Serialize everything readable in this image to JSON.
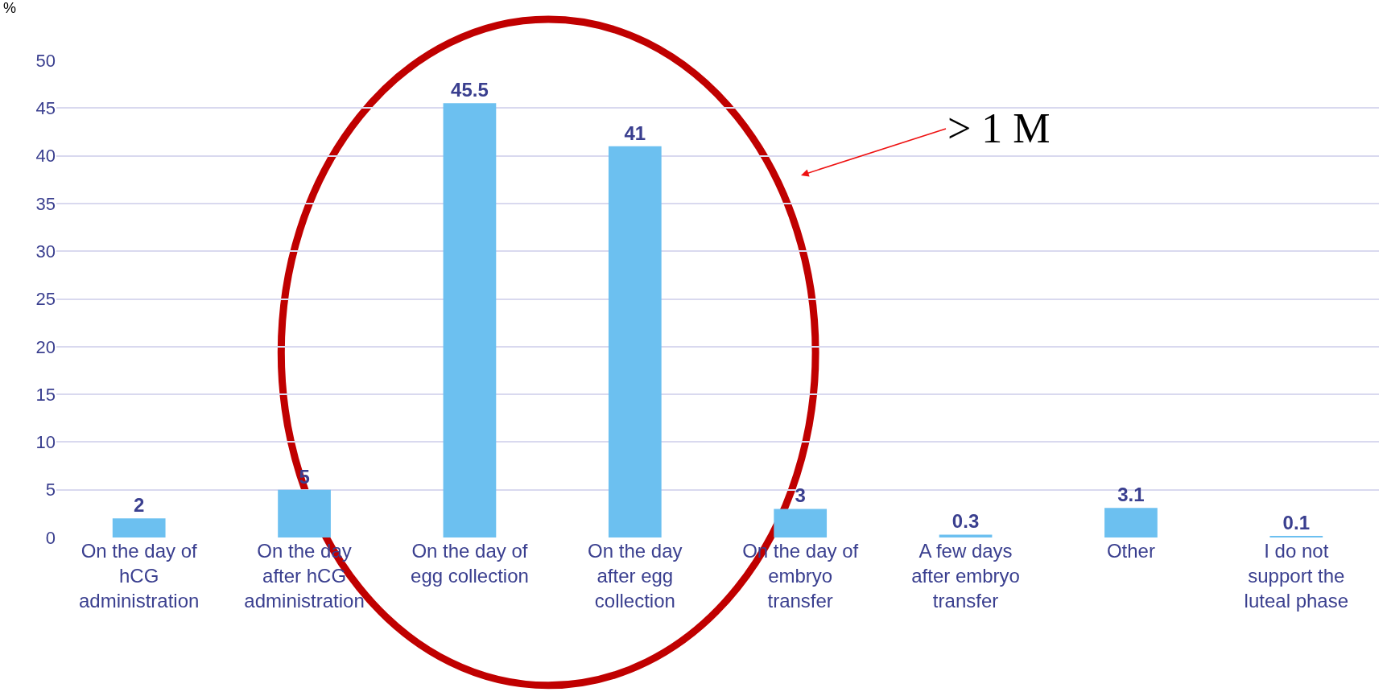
{
  "chart_data": {
    "type": "bar",
    "ylabel": "%",
    "categories": [
      "On the day of hCG administration",
      "On the day after hCG administration",
      "On the day of egg collection",
      "On the day after egg collection",
      "On the day of embryo transfer",
      "A few days after embryo transfer",
      "Other",
      "I do not support the luteal phase"
    ],
    "values": [
      2,
      5,
      45.5,
      41,
      3,
      0.3,
      3.1,
      0.1
    ],
    "color": "#6cc0f0",
    "data_labels": true,
    "ylim": [
      0,
      50
    ],
    "yticks": [
      0,
      5,
      10,
      15,
      20,
      25,
      30,
      35,
      40,
      45,
      50
    ],
    "grid": "y",
    "annotations": [
      "> 1 M"
    ]
  }
}
